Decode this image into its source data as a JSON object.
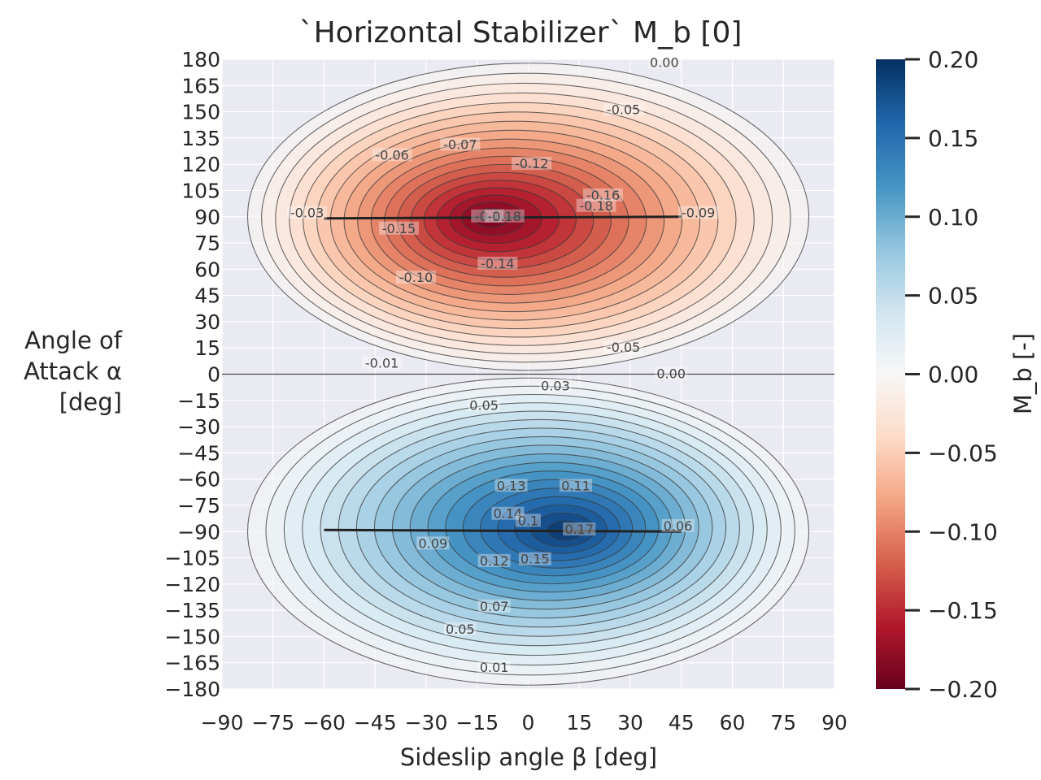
{
  "chart_data": {
    "type": "contour",
    "title": "`Horizontal Stabilizer` M_b [0]",
    "xlabel": "Sideslip angle β [deg]",
    "ylabel_lines": [
      "Angle of",
      "Attack α",
      "[deg]"
    ],
    "xlim": [
      -90,
      90
    ],
    "ylim": [
      -180,
      180
    ],
    "x_ticks": [
      -90,
      -75,
      -60,
      -45,
      -30,
      -15,
      0,
      15,
      30,
      45,
      60,
      75,
      90
    ],
    "x_tick_labels": [
      "−90",
      "−75",
      "−60",
      "−45",
      "−30",
      "−15",
      "0",
      "15",
      "30",
      "45",
      "60",
      "75",
      "90"
    ],
    "y_ticks": [
      180,
      165,
      150,
      135,
      120,
      105,
      90,
      75,
      60,
      45,
      30,
      15,
      0,
      -15,
      -30,
      -45,
      -60,
      -75,
      -90,
      -105,
      -120,
      -135,
      -150,
      -165,
      -180
    ],
    "y_tick_labels": [
      "180",
      "165",
      "150",
      "135",
      "120",
      "105",
      "90",
      "75",
      "60",
      "45",
      "30",
      "15",
      "0",
      "−15",
      "−30",
      "−45",
      "−60",
      "−75",
      "−90",
      "−105",
      "−120",
      "−135",
      "−150",
      "−165",
      "−180"
    ],
    "colorbar": {
      "label": "M_b [-]",
      "colormap": "RdBu",
      "range": [
        -0.2,
        0.2
      ],
      "ticks": [
        0.2,
        0.15,
        0.1,
        0.05,
        0.0,
        -0.05,
        -0.1,
        -0.15,
        -0.2
      ],
      "tick_labels": [
        "0.20",
        "0.15",
        "0.10",
        "0.05",
        "0.00",
        "−0.05",
        "−0.10",
        "−0.15",
        "−0.20"
      ],
      "colors": [
        "#67001f",
        "#b2182b",
        "#d6604d",
        "#f4a582",
        "#fddbc7",
        "#f7f7f7",
        "#d1e5f0",
        "#92c5de",
        "#4393c3",
        "#2166ac",
        "#053061"
      ]
    },
    "extrema": [
      {
        "beta": 5,
        "alpha": 90,
        "value": -0.19
      },
      {
        "beta": -5,
        "alpha": -90,
        "value": 0.19
      }
    ],
    "contour_labels": [
      {
        "text": "0.00",
        "beta": 40,
        "alpha": 178
      },
      {
        "text": "-0.05",
        "beta": 28,
        "alpha": 151
      },
      {
        "text": "-0.06",
        "beta": -40,
        "alpha": 125
      },
      {
        "text": "-0.07",
        "beta": -20,
        "alpha": 131
      },
      {
        "text": "-0.12",
        "beta": 1,
        "alpha": 120
      },
      {
        "text": "-0.16",
        "beta": 22,
        "alpha": 102
      },
      {
        "text": "-0.18",
        "beta": 20,
        "alpha": 96
      },
      {
        "text": "-0.03",
        "beta": -65,
        "alpha": 92
      },
      {
        "text": "-0.1",
        "beta": -12,
        "alpha": 90
      },
      {
        "text": "-0.18",
        "beta": -7,
        "alpha": 90
      },
      {
        "text": "-0.09",
        "beta": 50,
        "alpha": 92
      },
      {
        "text": "-0.15",
        "beta": -38,
        "alpha": 83
      },
      {
        "text": "-0.14",
        "beta": -9,
        "alpha": 63
      },
      {
        "text": "-0.10",
        "beta": -33,
        "alpha": 55
      },
      {
        "text": "-0.05",
        "beta": 28,
        "alpha": 15
      },
      {
        "text": "-0.01",
        "beta": -43,
        "alpha": 6
      },
      {
        "text": "0.00",
        "beta": 42,
        "alpha": 0
      },
      {
        "text": "0.03",
        "beta": 8,
        "alpha": -7
      },
      {
        "text": "0.05",
        "beta": -13,
        "alpha": -18
      },
      {
        "text": "0.13",
        "beta": -5,
        "alpha": -64
      },
      {
        "text": "0.11",
        "beta": 14,
        "alpha": -64
      },
      {
        "text": "0.14",
        "beta": -6,
        "alpha": -80
      },
      {
        "text": "0.1",
        "beta": 0,
        "alpha": -84
      },
      {
        "text": "0.17",
        "beta": 15,
        "alpha": -89
      },
      {
        "text": "0.06",
        "beta": 44,
        "alpha": -87
      },
      {
        "text": "0.09",
        "beta": -28,
        "alpha": -97
      },
      {
        "text": "0.12",
        "beta": -10,
        "alpha": -107
      },
      {
        "text": "0.15",
        "beta": 2,
        "alpha": -106
      },
      {
        "text": "0.07",
        "beta": -10,
        "alpha": -133
      },
      {
        "text": "0.05",
        "beta": -20,
        "alpha": -146
      },
      {
        "text": "0.01",
        "beta": -10,
        "alpha": -168
      }
    ]
  }
}
